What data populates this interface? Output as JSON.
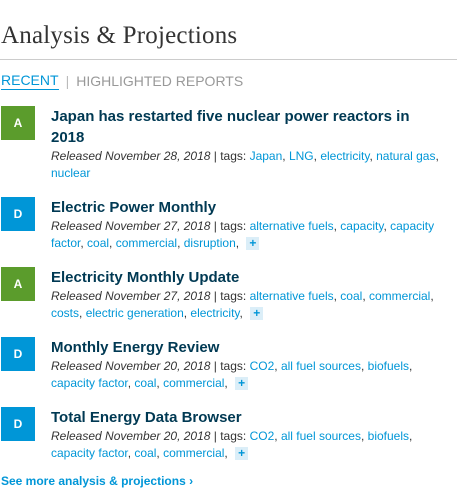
{
  "header": {
    "title": "Analysis & Projections"
  },
  "tabs": {
    "recent": "RECENT",
    "separator": "|",
    "highlighted": "HIGHLIGHTED REPORTS"
  },
  "items": [
    {
      "badge": "A",
      "title": "Japan has restarted five nuclear power reactors in 2018",
      "released": "Released November 28, 2018",
      "tags_label": " | tags: ",
      "tags": [
        "Japan",
        "LNG",
        "electricity",
        "natural gas",
        "nuclear"
      ],
      "more": ""
    },
    {
      "badge": "D",
      "title": "Electric Power Monthly",
      "released": "Released November 27, 2018",
      "tags_label": " | tags: ",
      "tags": [
        "alternative fuels",
        "capacity",
        "capacity factor",
        "coal",
        "commercial",
        "disruption"
      ],
      "more": "+"
    },
    {
      "badge": "A",
      "title": "Electricity Monthly Update",
      "released": "Released November 27, 2018",
      "tags_label": " | tags: ",
      "tags": [
        "alternative fuels",
        "coal",
        "commercial",
        "costs",
        "electric generation",
        "electricity"
      ],
      "more": "+"
    },
    {
      "badge": "D",
      "title": "Monthly Energy Review",
      "released": "Released November 20, 2018",
      "tags_label": " | tags: ",
      "tags": [
        "CO2",
        "all fuel sources",
        "biofuels",
        "capacity factor",
        "coal",
        "commercial"
      ],
      "more": "+"
    },
    {
      "badge": "D",
      "title": "Total Energy Data Browser",
      "released": "Released November 20, 2018",
      "tags_label": " | tags: ",
      "tags": [
        "CO2",
        "all fuel sources",
        "biofuels",
        "capacity factor",
        "coal",
        "commercial"
      ],
      "more": "+"
    }
  ],
  "footer": {
    "more_link": "See more analysis & projections ›"
  },
  "colors": {
    "link": "#0096d7",
    "analysis_badge": "#5b9c2c",
    "data_badge": "#0096d7",
    "title": "#003953"
  }
}
